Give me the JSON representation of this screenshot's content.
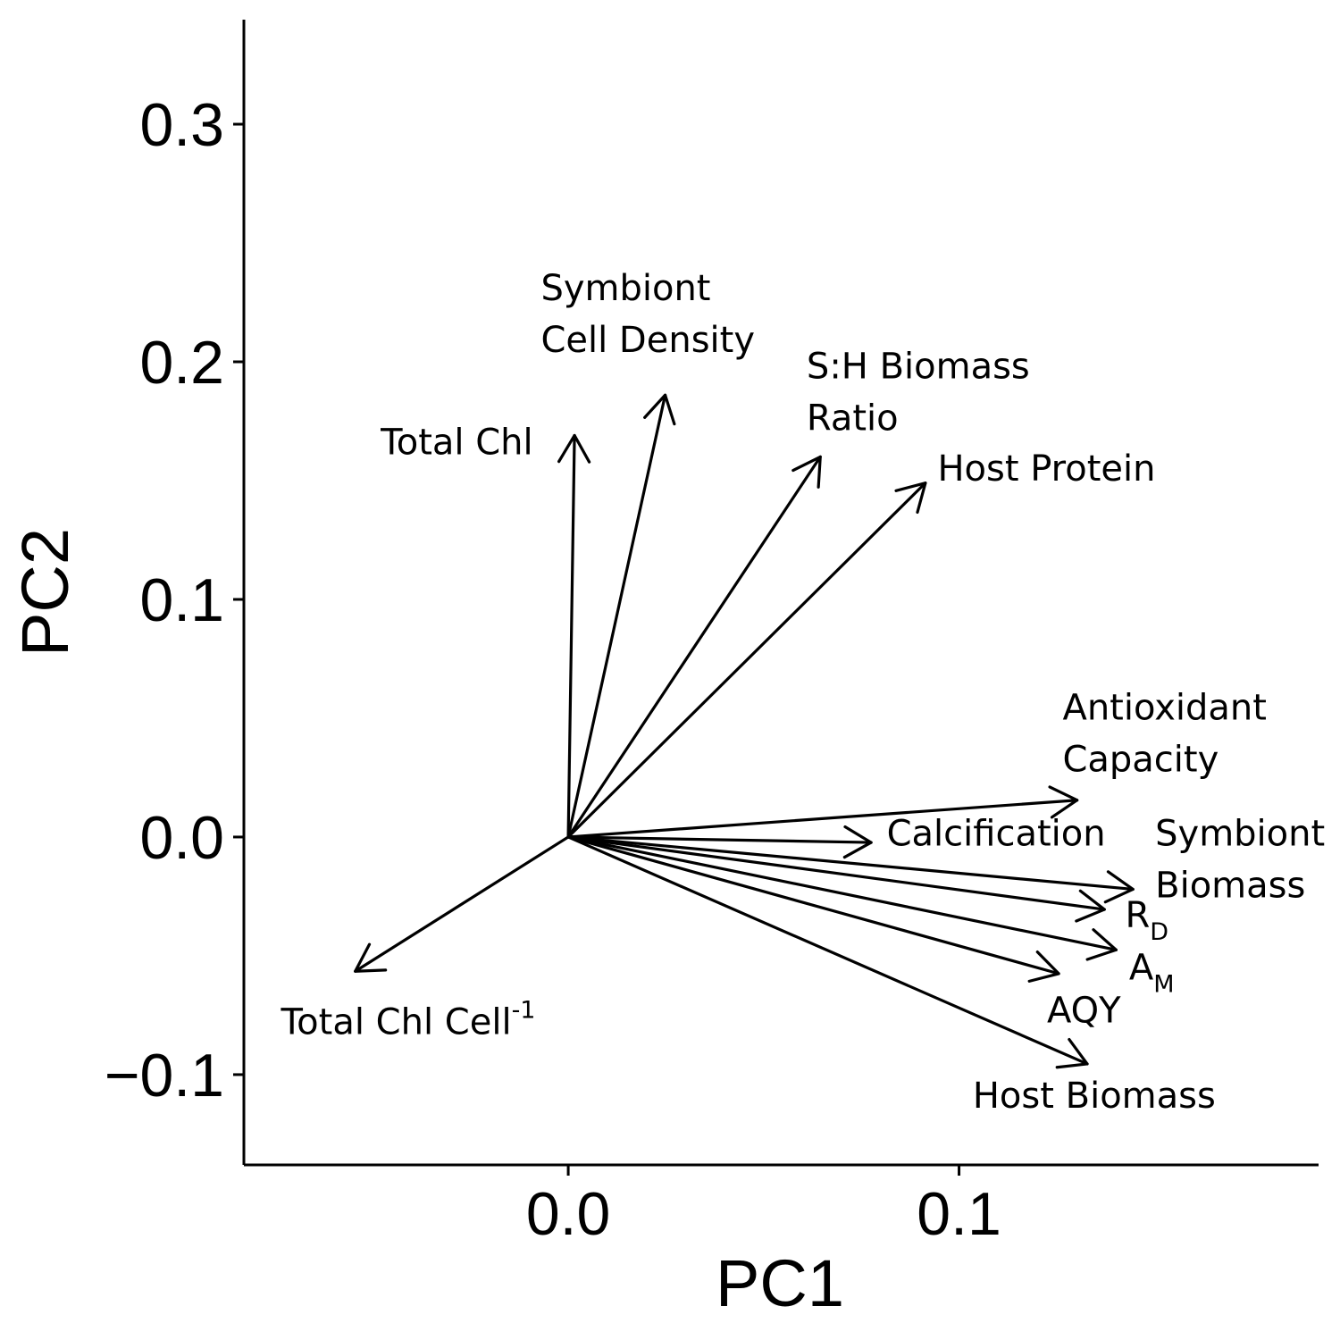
{
  "chart_data": {
    "type": "biplot",
    "title": "",
    "xlabel": "PC1",
    "ylabel": "PC2",
    "xlim": [
      -0.083,
      0.192
    ],
    "ylim": [
      -0.138,
      0.344
    ],
    "xticks": [
      {
        "value": 0.0,
        "label": "0.0"
      },
      {
        "value": 0.1,
        "label": "0.1"
      }
    ],
    "yticks": [
      {
        "value": -0.1,
        "label": "−0.1"
      },
      {
        "value": 0.0,
        "label": "0.0"
      },
      {
        "value": 0.1,
        "label": "0.1"
      },
      {
        "value": 0.2,
        "label": "0.2"
      },
      {
        "value": 0.3,
        "label": "0.3"
      }
    ],
    "origin": [
      0,
      0
    ],
    "vectors": [
      {
        "id": "total-chl",
        "x": 0.0016,
        "y": 0.169,
        "label_lines": [
          "Total Chl"
        ],
        "label_at": [
          -0.048,
          0.161
        ],
        "anchor": "start"
      },
      {
        "id": "symbiont-cell-density",
        "x": 0.0248,
        "y": 0.186,
        "label_lines": [
          "Symbiont",
          "Cell Density"
        ],
        "label_at": [
          -0.007,
          0.226
        ],
        "anchor": "start"
      },
      {
        "id": "sh-biomass-ratio",
        "x": 0.0645,
        "y": 0.16,
        "label_lines": [
          "S:H Biomass",
          "Ratio"
        ],
        "label_at": [
          0.061,
          0.193
        ],
        "anchor": "start"
      },
      {
        "id": "host-protein",
        "x": 0.0914,
        "y": 0.149,
        "label_lines": [
          "Host Protein"
        ],
        "label_at": [
          0.0945,
          0.15
        ],
        "anchor": "start"
      },
      {
        "id": "antioxidant-capacity",
        "x": 0.1302,
        "y": 0.0155,
        "label_lines": [
          "Antioxidant",
          "Capacity"
        ],
        "label_at": [
          0.1265,
          0.0495
        ],
        "anchor": "start"
      },
      {
        "id": "calcification",
        "x": 0.0775,
        "y": -0.0023,
        "label_lines": [
          "Calcification"
        ],
        "label_at": [
          0.0815,
          -0.0035
        ],
        "anchor": "start"
      },
      {
        "id": "symbiont-biomass",
        "x": 0.1445,
        "y": -0.022,
        "label_lines": [
          "Symbiont",
          "Biomass"
        ],
        "label_at": [
          0.1502,
          -0.0035
        ],
        "anchor": "start"
      },
      {
        "id": "rd",
        "x": 0.1372,
        "y": -0.0305,
        "label_lines": [
          "R"
        ],
        "sub": "D",
        "label_at": [
          0.1425,
          -0.038
        ],
        "anchor": "start"
      },
      {
        "id": "am",
        "x": 0.1402,
        "y": -0.0475,
        "label_lines": [
          "A"
        ],
        "sub": "M",
        "label_at": [
          0.1435,
          -0.06
        ],
        "anchor": "start"
      },
      {
        "id": "aqy",
        "x": 0.1255,
        "y": -0.0575,
        "label_lines": [
          "AQY"
        ],
        "label_at": [
          0.1225,
          -0.078
        ],
        "anchor": "start"
      },
      {
        "id": "host-biomass",
        "x": 0.1328,
        "y": -0.0955,
        "label_lines": [
          "Host Biomass"
        ],
        "label_at": [
          0.1035,
          -0.114
        ],
        "anchor": "start"
      },
      {
        "id": "total-chl-cell",
        "x": -0.0545,
        "y": -0.0565,
        "label_lines": [
          "Total Chl Cell"
        ],
        "sup": "-1",
        "label_at": [
          -0.0735,
          -0.083
        ],
        "anchor": "start"
      }
    ]
  }
}
